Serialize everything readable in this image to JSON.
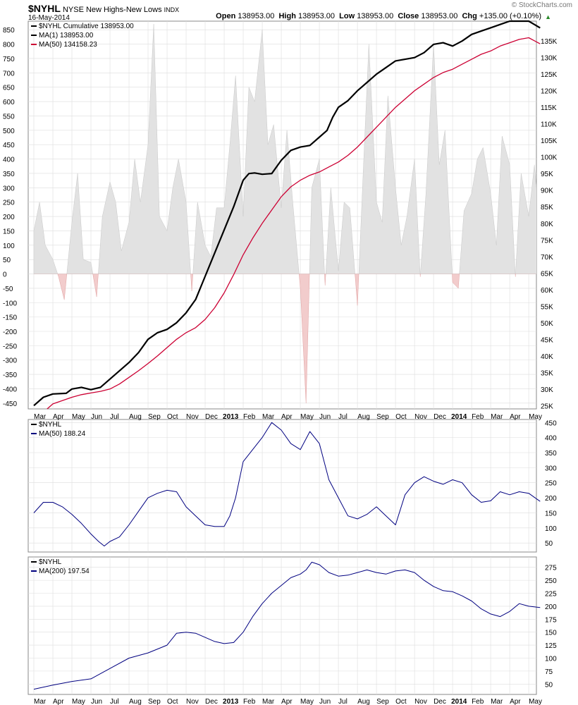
{
  "header": {
    "symbol": "$NYHL",
    "name": "NYSE New Highs-New Lows",
    "exchange": "INDX",
    "date": "16-May-2014",
    "open_label": "Open",
    "open": "138953.00",
    "high_label": "High",
    "high": "138953.00",
    "low_label": "Low",
    "low": "138953.00",
    "close_label": "Close",
    "close": "138953.00",
    "chg_label": "Chg",
    "chg": "+135.00 (+0.10%)",
    "watermark": "© StockCharts.com"
  },
  "colors": {
    "cumulative": "#000000",
    "ma50_main": "#cc0033",
    "ma_blue": "#000080",
    "area_pos": "#e2e2e2",
    "area_neg": "#f2cccc",
    "grid": "#dddddd"
  },
  "x_axis": {
    "labels": [
      "Mar",
      "Apr",
      "May",
      "Jun",
      "Jul",
      "Aug",
      "Sep",
      "Oct",
      "Nov",
      "Dec",
      "2013",
      "Feb",
      "Mar",
      "Apr",
      "May",
      "Jun",
      "Jul",
      "Aug",
      "Sep",
      "Oct",
      "Nov",
      "Dec",
      "2014",
      "Feb",
      "Mar",
      "Apr",
      "May"
    ],
    "bold": [
      "2013",
      "2014"
    ]
  },
  "chart_data": [
    {
      "type": "line",
      "panel": "main",
      "legend_location": "top-left",
      "legend": [
        {
          "text": "$NYHL Cumulative 138953.00",
          "color": "#000000"
        },
        {
          "text": "MA(1) 138953.00",
          "color": "#000000"
        },
        {
          "text": "MA(50) 134158.23",
          "color": "#cc0033"
        }
      ],
      "left_axis": {
        "ylim": [
          -470,
          880
        ],
        "ticks": [
          -450,
          -400,
          -350,
          -300,
          -250,
          -200,
          -150,
          -100,
          -50,
          0,
          50,
          100,
          150,
          200,
          250,
          300,
          350,
          400,
          450,
          500,
          550,
          600,
          650,
          700,
          750,
          800,
          850
        ]
      },
      "right_axis": {
        "ylim": [
          24000,
          141000
        ],
        "ticks": [
          25000,
          30000,
          35000,
          40000,
          45000,
          50000,
          55000,
          60000,
          65000,
          70000,
          75000,
          80000,
          85000,
          90000,
          95000,
          100000,
          105000,
          110000,
          115000,
          120000,
          125000,
          130000,
          135000
        ]
      },
      "series": [
        {
          "name": "$NYHL Cumulative",
          "axis": "right",
          "color": "#000000",
          "x": [
            0,
            0.5,
            1,
            1.7,
            2,
            2.5,
            3,
            3.5,
            4,
            4.5,
            5,
            5.5,
            6,
            6.5,
            7,
            7.5,
            8,
            8.5,
            9,
            9.5,
            10,
            10.5,
            11,
            11.3,
            11.6,
            12,
            12.5,
            13,
            13.5,
            14,
            14.5,
            15,
            15.4,
            15.7,
            16,
            16.5,
            17,
            17.5,
            18,
            18.5,
            19,
            19.5,
            20,
            20.5,
            21,
            21.5,
            22,
            22.5,
            23,
            23.5,
            24,
            24.5,
            25,
            25.5,
            26,
            26.6
          ],
          "values": [
            25000,
            27500,
            28500,
            28700,
            30000,
            30500,
            29800,
            30500,
            33000,
            35500,
            38000,
            41000,
            45000,
            47000,
            48000,
            50000,
            53000,
            57000,
            64000,
            71000,
            78000,
            85000,
            93000,
            95000,
            95200,
            94800,
            95000,
            99000,
            102000,
            103000,
            103500,
            106000,
            108000,
            112000,
            115000,
            117000,
            120000,
            122500,
            125000,
            127000,
            129000,
            129500,
            130000,
            131500,
            134000,
            134500,
            133500,
            135000,
            137000,
            138000,
            139000,
            140000,
            141000,
            141000,
            141000,
            138953
          ]
        },
        {
          "name": "MA(50)",
          "axis": "right",
          "color": "#cc0033",
          "x": [
            0.7,
            1,
            2,
            2.5,
            3,
            3.5,
            4,
            4.5,
            5,
            5.5,
            6,
            6.5,
            7,
            7.5,
            8,
            8.5,
            9,
            9.5,
            10,
            10.5,
            11,
            11.5,
            12,
            12.5,
            13,
            13.5,
            14,
            14.5,
            15,
            15.5,
            16,
            16.5,
            17,
            17.5,
            18,
            18.5,
            19,
            19.5,
            20,
            20.5,
            21,
            21.5,
            22,
            22.5,
            23,
            23.5,
            24,
            24.5,
            25,
            25.5,
            26,
            26.6
          ],
          "values": [
            24000,
            25500,
            27500,
            28300,
            28800,
            29300,
            30000,
            31500,
            33500,
            35500,
            37700,
            40000,
            42500,
            45000,
            47000,
            48500,
            51000,
            54500,
            59000,
            64500,
            70500,
            75500,
            80000,
            84000,
            88000,
            91000,
            93000,
            94500,
            95500,
            97000,
            98500,
            100500,
            103000,
            106000,
            109000,
            112000,
            115000,
            117500,
            120000,
            122000,
            124000,
            125500,
            126500,
            128000,
            129500,
            131000,
            132000,
            133500,
            134500,
            135500,
            136000,
            134158
          ]
        },
        {
          "name": "$NYHL",
          "type": "area",
          "axis": "left",
          "color": "#e2e2e2",
          "x": [
            0,
            0.3,
            0.6,
            1,
            1.3,
            1.6,
            2,
            2.3,
            2.6,
            3,
            3.3,
            3.6,
            4,
            4.3,
            4.6,
            5,
            5.3,
            5.6,
            6,
            6.3,
            6.6,
            7,
            7.3,
            7.6,
            8,
            8.3,
            8.6,
            9,
            9.3,
            9.6,
            10,
            10.3,
            10.6,
            11,
            11.3,
            11.6,
            12,
            12.3,
            12.6,
            13,
            13.3,
            13.6,
            14,
            14.3,
            14.6,
            15,
            15.3,
            15.6,
            16,
            16.3,
            16.6,
            17,
            17.3,
            17.6,
            18,
            18.3,
            18.6,
            19,
            19.3,
            19.6,
            20,
            20.3,
            20.6,
            21,
            21.3,
            21.6,
            22,
            22.3,
            22.6,
            23,
            23.3,
            23.6,
            24,
            24.3,
            24.6,
            25,
            25.3,
            25.6,
            26,
            26.3,
            26.6
          ],
          "values": [
            150,
            250,
            100,
            50,
            -10,
            -90,
            180,
            350,
            50,
            40,
            -80,
            200,
            320,
            250,
            80,
            180,
            400,
            250,
            450,
            870,
            200,
            150,
            300,
            400,
            250,
            -60,
            250,
            100,
            60,
            230,
            230,
            450,
            690,
            200,
            650,
            600,
            850,
            450,
            520,
            230,
            500,
            250,
            -50,
            -450,
            300,
            400,
            -40,
            300,
            10,
            250,
            230,
            -110,
            350,
            800,
            250,
            180,
            620,
            300,
            100,
            200,
            400,
            -10,
            280,
            800,
            380,
            500,
            -30,
            -50,
            220,
            280,
            400,
            440,
            280,
            100,
            480,
            380,
            -10,
            350,
            200,
            380,
            150
          ]
        }
      ]
    },
    {
      "type": "line",
      "panel": "middle",
      "legend_location": "top-left",
      "legend": [
        {
          "text": "$NYHL",
          "color": "#000000"
        },
        {
          "text": "MA(50) 188.24",
          "color": "#000080"
        }
      ],
      "ylim": [
        20,
        460
      ],
      "yticks": [
        50,
        100,
        150,
        200,
        250,
        300,
        350,
        400,
        450
      ],
      "series": [
        {
          "name": "MA(50)",
          "color": "#000080",
          "x": [
            0,
            0.5,
            1,
            1.5,
            2,
            2.5,
            3,
            3.4,
            3.7,
            4,
            4.5,
            5,
            5.5,
            6,
            6.5,
            7,
            7.5,
            8,
            8.5,
            9,
            9.5,
            10,
            10.3,
            10.6,
            11,
            11.5,
            12,
            12.5,
            13,
            13.5,
            14,
            14.5,
            15,
            15.5,
            16,
            16.5,
            17,
            17.5,
            18,
            18.5,
            19,
            19.5,
            20,
            20.5,
            21,
            21.5,
            22,
            22.5,
            23,
            23.5,
            24,
            24.5,
            25,
            25.5,
            26,
            26.6
          ],
          "values": [
            150,
            185,
            185,
            170,
            145,
            115,
            80,
            55,
            40,
            55,
            70,
            110,
            155,
            200,
            215,
            225,
            220,
            170,
            140,
            110,
            105,
            105,
            140,
            200,
            320,
            360,
            400,
            450,
            425,
            380,
            360,
            420,
            380,
            260,
            200,
            140,
            130,
            145,
            170,
            140,
            110,
            210,
            250,
            270,
            255,
            245,
            260,
            250,
            210,
            185,
            190,
            220,
            210,
            220,
            215,
            188
          ]
        }
      ]
    },
    {
      "type": "line",
      "panel": "bottom",
      "legend_location": "top-left",
      "legend": [
        {
          "text": "$NYHL",
          "color": "#000000"
        },
        {
          "text": "MA(200) 197.54",
          "color": "#000080"
        }
      ],
      "ylim": [
        30,
        295
      ],
      "yticks": [
        50,
        75,
        100,
        125,
        150,
        175,
        200,
        225,
        250,
        275
      ],
      "series": [
        {
          "name": "MA(200)",
          "color": "#000080",
          "x": [
            0,
            1,
            2,
            3,
            4,
            5,
            6,
            7,
            7.5,
            8,
            8.5,
            9,
            9.5,
            10,
            10.5,
            11,
            11.5,
            12,
            12.5,
            13,
            13.5,
            14,
            14.3,
            14.6,
            15,
            15.5,
            16,
            16.5,
            17,
            17.5,
            18,
            18.5,
            19,
            19.5,
            20,
            20.5,
            21,
            21.5,
            22,
            22.5,
            23,
            23.5,
            24,
            24.5,
            25,
            25.5,
            26,
            26.6
          ],
          "values": [
            40,
            48,
            55,
            60,
            80,
            100,
            110,
            125,
            148,
            150,
            148,
            140,
            132,
            128,
            130,
            150,
            180,
            205,
            225,
            240,
            255,
            262,
            270,
            285,
            280,
            265,
            258,
            260,
            265,
            270,
            265,
            262,
            268,
            270,
            265,
            250,
            238,
            230,
            228,
            220,
            210,
            195,
            185,
            180,
            190,
            205,
            200,
            197.54
          ]
        }
      ]
    }
  ]
}
